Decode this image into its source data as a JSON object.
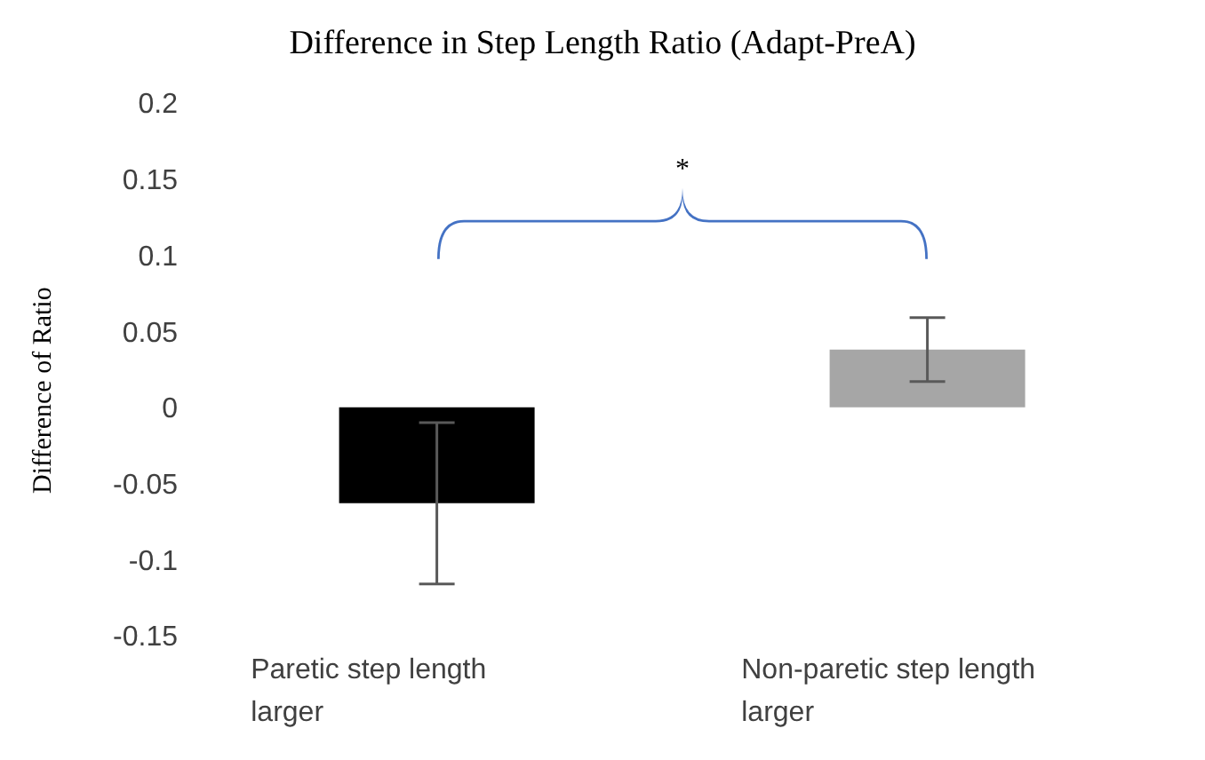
{
  "chart_data": {
    "type": "bar",
    "title": "Difference in Step Length Ratio (Adapt-PreA)",
    "ylabel": "Difference of Ratio",
    "categories": [
      "Paretic step length larger",
      "Non-paretic step length larger"
    ],
    "values": [
      -0.063,
      0.038
    ],
    "colors": [
      "#000000",
      "#a6a6a6"
    ],
    "errors": [
      0.053,
      0.021
    ],
    "ylim": [
      -0.15,
      0.2
    ],
    "yticks": [
      -0.15,
      -0.1,
      -0.05,
      0,
      0.05,
      0.1,
      0.15,
      0.2
    ],
    "grid": false,
    "legend": false,
    "annotations": [
      "*"
    ]
  }
}
